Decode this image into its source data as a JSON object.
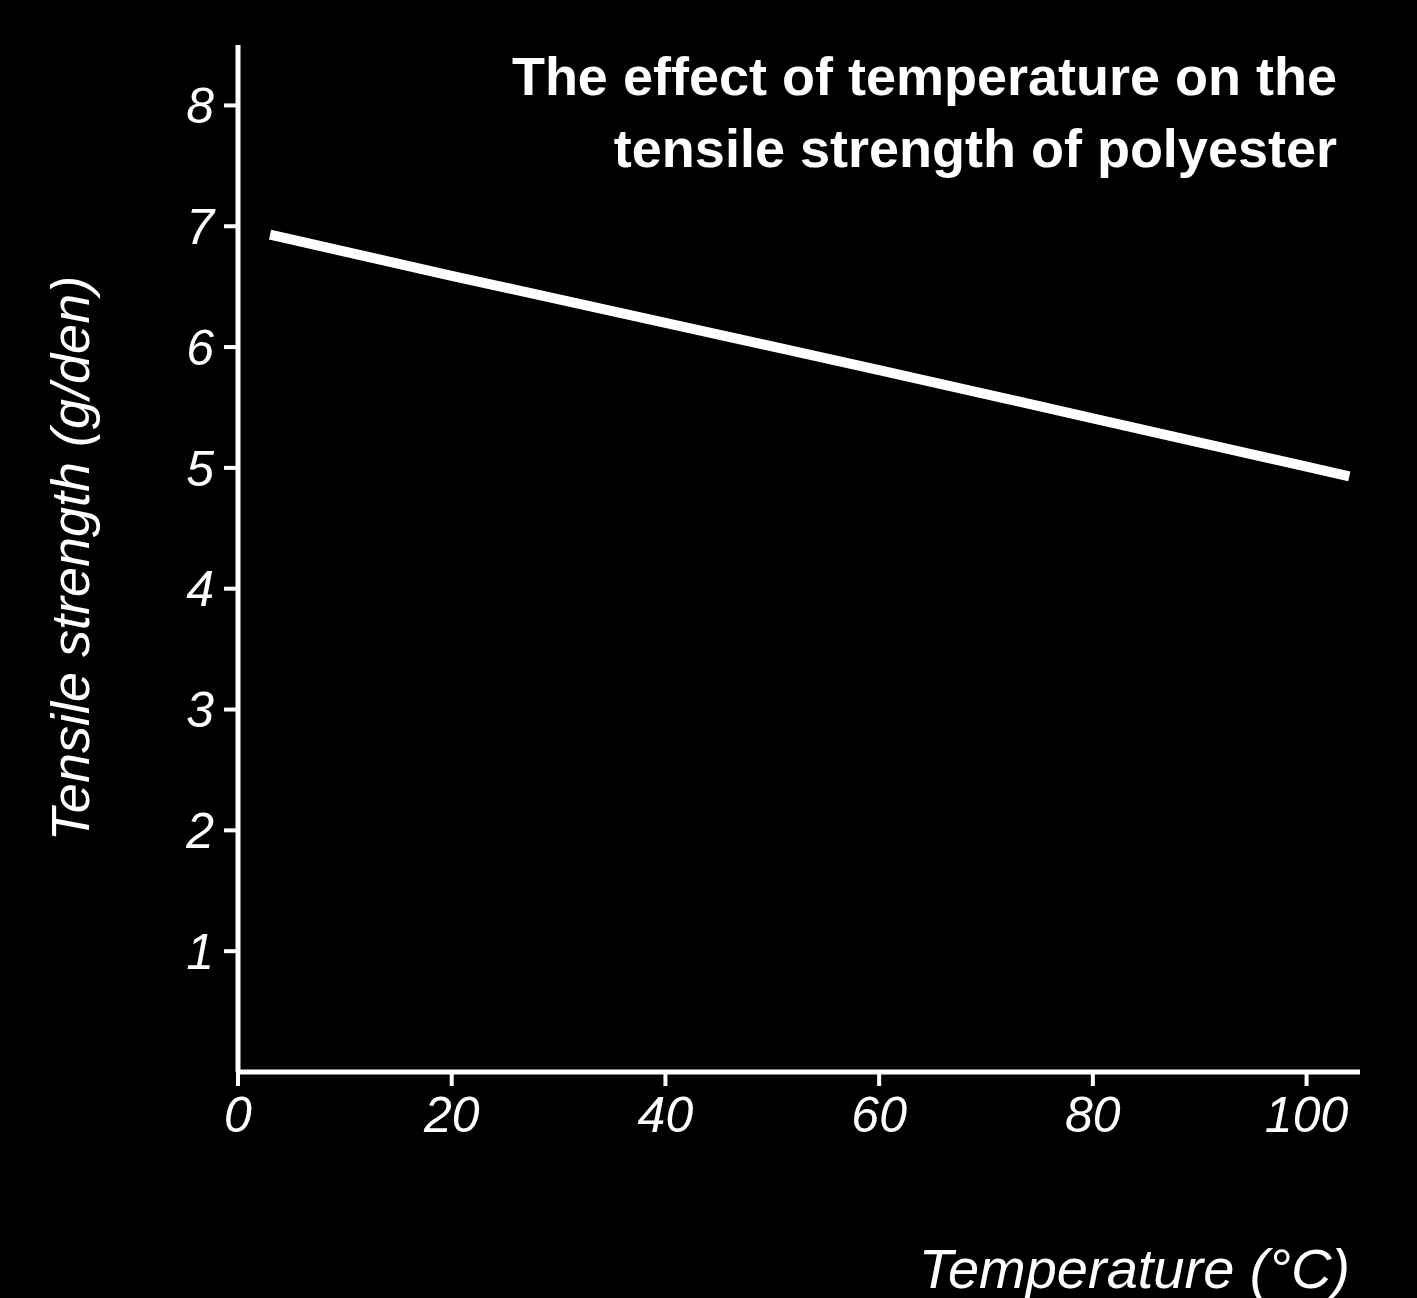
{
  "chart_data": {
    "type": "line",
    "title": "The effect of temperature on the tensile strength of polyester",
    "x_label": "Temperature (°C)",
    "y_label": "Tensile strength (g/den)",
    "x": [
      3,
      20,
      40,
      60,
      80,
      100,
      104
    ],
    "values": [
      6.93,
      6.59,
      6.2,
      5.81,
      5.41,
      5.01,
      4.93
    ],
    "color": "#ffffff",
    "xlim": [
      0,
      105
    ],
    "xticks": [
      0,
      20,
      40,
      60,
      80,
      100
    ],
    "ylim": [
      0,
      8.5
    ],
    "yticks": [
      1,
      2,
      3,
      4,
      5,
      6,
      7,
      8
    ],
    "grid": false
  }
}
